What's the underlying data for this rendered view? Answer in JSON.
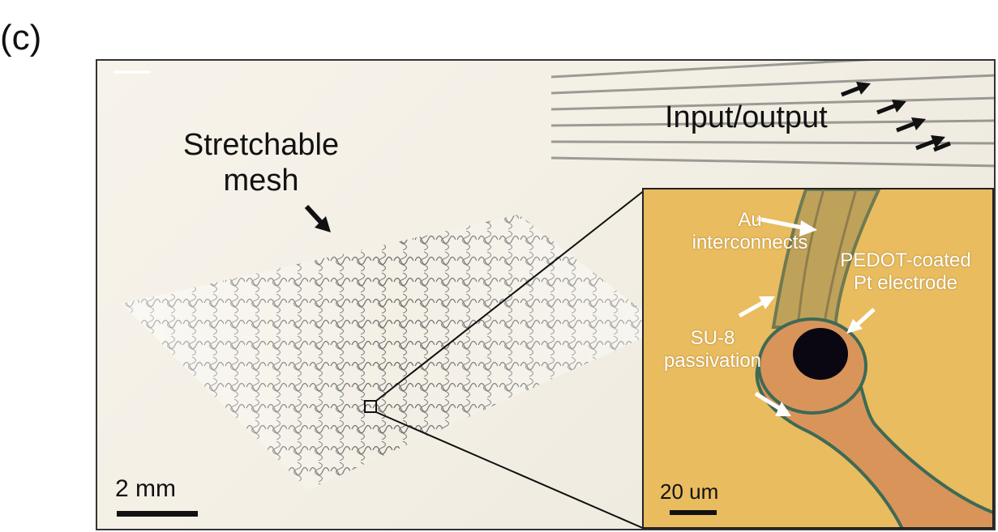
{
  "panel_label": "(c)",
  "labels": {
    "stretchable_mesh_line1": "Stretchable",
    "stretchable_mesh_line2": "mesh",
    "input_output": "Input/output"
  },
  "inset": {
    "au_line1": "Au",
    "au_line2": "interconnects",
    "pedot_line1": "PEDOT-coated",
    "pedot_line2": "Pt electrode",
    "su8_line1": "SU-8",
    "su8_line2": "passivation",
    "scale_label": "20 um"
  },
  "scale_label": "2 mm",
  "colors": {
    "inset_background": "#e9bc5f",
    "electrode": "#0a0712",
    "trace": "#d9945a"
  }
}
